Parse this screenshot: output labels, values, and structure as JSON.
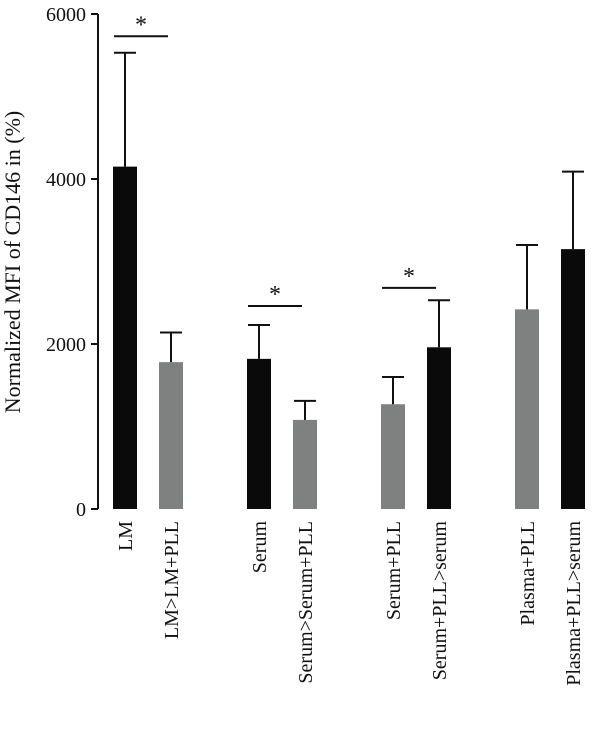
{
  "chart_data": {
    "type": "bar",
    "title": "",
    "xlabel": "",
    "ylabel": "Normalized MFI of CD146 in (%)",
    "ylim": [
      0,
      6000
    ],
    "yticks": [
      0,
      2000,
      4000,
      6000
    ],
    "grid": false,
    "legend": "none",
    "bars": [
      {
        "label": "LM",
        "value": 4150,
        "error": 1380,
        "color": "#0a0a0a",
        "group": 0
      },
      {
        "label": "LM>LM+PLL",
        "value": 1780,
        "error": 360,
        "color": "#7f8080",
        "group": 0
      },
      {
        "label": "Serum",
        "value": 1820,
        "error": 410,
        "color": "#0a0a0a",
        "group": 1
      },
      {
        "label": "Serum>Serum+PLL",
        "value": 1080,
        "error": 230,
        "color": "#7f8080",
        "group": 1
      },
      {
        "label": "Serum+PLL",
        "value": 1270,
        "error": 330,
        "color": "#7f8080",
        "group": 2
      },
      {
        "label": "Serum+PLL>serum",
        "value": 1960,
        "error": 570,
        "color": "#0a0a0a",
        "group": 2
      },
      {
        "label": "Plasma+PLL",
        "value": 2420,
        "error": 780,
        "color": "#7f8080",
        "group": 3
      },
      {
        "label": "Plasma+PLL>serum",
        "value": 3150,
        "error": 940,
        "color": "#0a0a0a",
        "group": 3
      }
    ],
    "significance": [
      {
        "from": 0,
        "to": 1,
        "value": 5730,
        "label": "*"
      },
      {
        "from": 2,
        "to": 3,
        "value": 2460,
        "label": "*"
      },
      {
        "from": 4,
        "to": 5,
        "value": 2680,
        "label": "*"
      }
    ]
  }
}
